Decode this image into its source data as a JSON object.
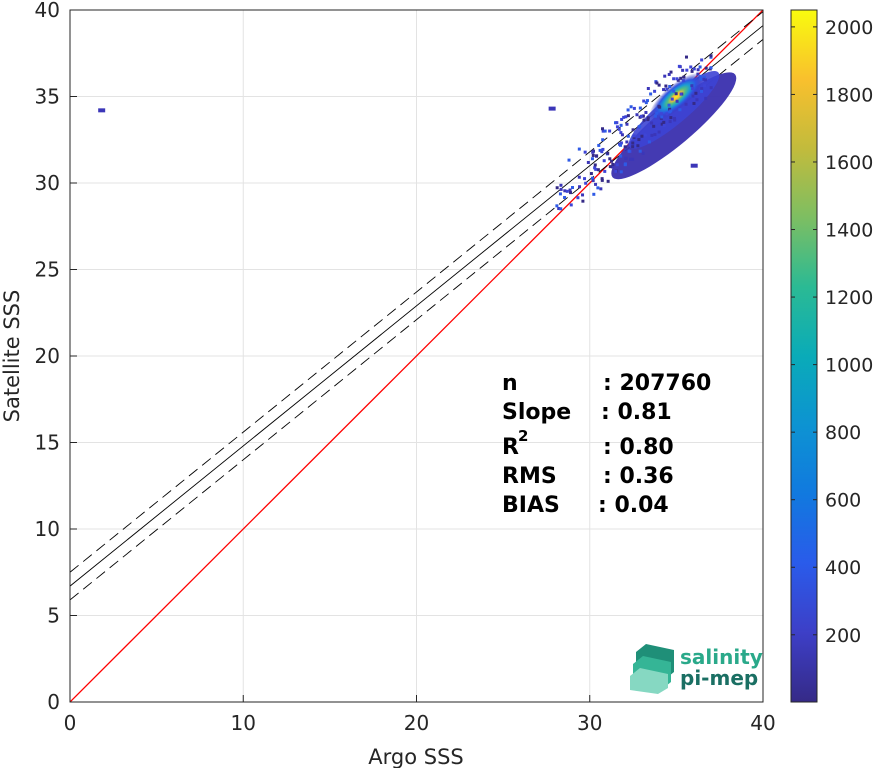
{
  "chart_data": {
    "type": "heatmap",
    "xlabel": "Argo SSS",
    "ylabel": "Satellite SSS",
    "xlim": [
      0,
      40
    ],
    "ylim": [
      0,
      40
    ],
    "xticks": [
      0,
      10,
      20,
      30,
      40
    ],
    "yticks": [
      0,
      5,
      10,
      15,
      20,
      25,
      30,
      35,
      40
    ],
    "grid": true,
    "colorbar": {
      "min": 1,
      "max": 2050,
      "ticks": [
        200,
        400,
        600,
        800,
        1000,
        1200,
        1400,
        1600,
        1800,
        2000
      ],
      "colormap": "parula"
    },
    "density": {
      "core": {
        "x": 35.0,
        "y": 35.0,
        "peak_count": 2000
      },
      "cluster_x_range": [
        28,
        37
      ],
      "cluster_y_range": [
        28.5,
        37.5
      ],
      "outliers": [
        {
          "x": 1.8,
          "y": 34.2
        },
        {
          "x": 27.8,
          "y": 34.3
        },
        {
          "x": 36.0,
          "y": 31.0
        }
      ]
    },
    "lines": [
      {
        "name": "one-to-one",
        "color": "#ff0000",
        "style": "solid",
        "slope": 1.0,
        "intercept": 0.0
      },
      {
        "name": "regression",
        "color": "#000000",
        "style": "solid",
        "slope": 0.81,
        "intercept": 6.7
      },
      {
        "name": "regression-plus-std",
        "color": "#000000",
        "style": "dashed",
        "slope": 0.81,
        "intercept": 7.5
      },
      {
        "name": "regression-minus-std",
        "color": "#000000",
        "style": "dashed",
        "slope": 0.81,
        "intercept": 5.9
      }
    ],
    "stats": [
      {
        "key": "n",
        "value": ": 207760"
      },
      {
        "key": "Slope",
        "value": ": 0.81"
      },
      {
        "key": "R",
        "sup": "2",
        "value": ": 0.80"
      },
      {
        "key": "RMS",
        "value": ": 0.36"
      },
      {
        "key": "BIAS",
        "value": ": 0.04"
      }
    ]
  },
  "logo": {
    "line1": "salinity",
    "line2": "pi-mep",
    "color_top": "#2aa98a",
    "color_bottom": "#1a6f63"
  }
}
